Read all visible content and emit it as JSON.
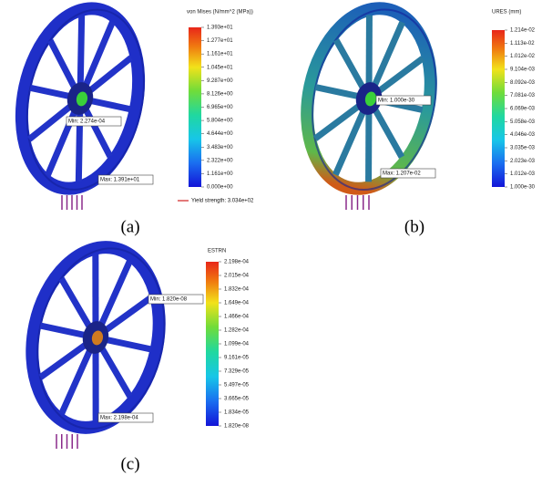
{
  "panels": [
    {
      "legend_title": "von Mises (N/mm^2 (MPa))",
      "ticks": [
        "1.393e+01",
        "1.277e+01",
        "1.161e+01",
        "1.045e+01",
        "9.287e+00",
        "8.126e+00",
        "6.965e+00",
        "5.804e+00",
        "4.644e+00",
        "3.483e+00",
        "2.322e+00",
        "1.161e+00",
        "0.000e+00"
      ],
      "min_label": "Min: 2.274e-04",
      "max_label": "Max: 1.391e+01",
      "yield_label": "Yield strength: 3.034e+02",
      "caption": "(a)"
    },
    {
      "legend_title": "URES (mm)",
      "ticks": [
        "1.214e-02",
        "1.113e-02",
        "1.012e-02",
        "9.104e-03",
        "8.092e-03",
        "7.081e-03",
        "6.069e-03",
        "5.058e-03",
        "4.046e-03",
        "3.035e-03",
        "2.023e-03",
        "1.012e-03",
        "1.000e-30"
      ],
      "min_label": "Min: 1.000e-30",
      "max_label": "Max: 1.207e-02",
      "caption": "(b)"
    },
    {
      "legend_title": "ESTRN",
      "ticks": [
        "2.198e-04",
        "2.015e-04",
        "1.832e-04",
        "1.649e-04",
        "1.466e-04",
        "1.282e-04",
        "1.099e-04",
        "9.161e-05",
        "7.329e-05",
        "5.497e-05",
        "3.665e-05",
        "1.834e-05",
        "1.820e-08"
      ],
      "min_label": "Min: 1.820e-08",
      "max_label": "Max: 2.198e-04",
      "caption": "(c)"
    }
  ]
}
